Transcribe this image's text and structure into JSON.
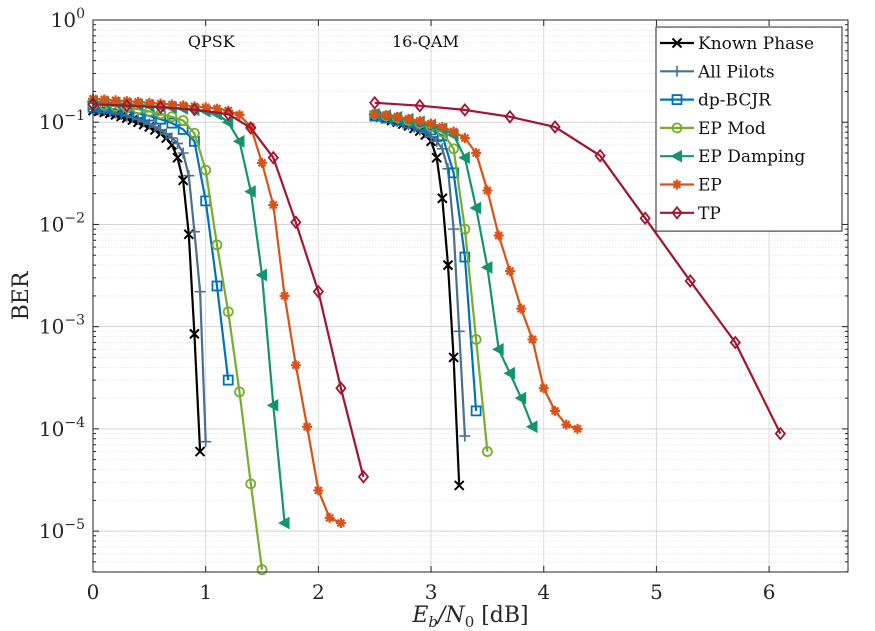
{
  "chart_data": {
    "type": "line",
    "xlabel": "E_b/N_0 [dB]",
    "xlabel_parts": {
      "main": "E",
      "sub1": "b",
      "mid": "/N",
      "sub2": "0",
      "unit": " [dB]"
    },
    "ylabel": "BER",
    "xlim": [
      0,
      6.7
    ],
    "ylim_exp": [
      -5.4,
      0
    ],
    "y_scale": "log",
    "x_ticks": [
      "0",
      "1",
      "2",
      "3",
      "4",
      "5",
      "6"
    ],
    "y_ticks": [
      {
        "base": "10",
        "exp": "0"
      },
      {
        "base": "10",
        "exp": "−1"
      },
      {
        "base": "10",
        "exp": "−2"
      },
      {
        "base": "10",
        "exp": "−3"
      },
      {
        "base": "10",
        "exp": "−4"
      },
      {
        "base": "10",
        "exp": "−5"
      }
    ],
    "grid": true,
    "legend_position": "top-right",
    "annotations": [
      {
        "text": "QPSK",
        "x": 1.05,
        "y": 0.62
      },
      {
        "text": "16-QAM",
        "x": 2.95,
        "y": 0.62
      }
    ],
    "series": [
      {
        "name": "Known Phase",
        "color": "#000000",
        "marker": "x",
        "x": [
          0,
          0.05,
          0.1,
          0.15,
          0.2,
          0.25,
          0.3,
          0.35,
          0.4,
          0.45,
          0.5,
          0.55,
          0.6,
          0.65,
          0.7,
          0.75,
          0.8,
          0.85,
          0.9,
          0.95
        ],
        "y": [
          0.13,
          0.128,
          0.125,
          0.122,
          0.118,
          0.114,
          0.11,
          0.105,
          0.1,
          0.095,
          0.09,
          0.084,
          0.077,
          0.07,
          0.06,
          0.045,
          0.027,
          0.008,
          0.00085,
          6e-05
        ]
      },
      {
        "name": "Known Phase",
        "color": "#000000",
        "marker": "x",
        "x": [
          2.5,
          2.55,
          2.6,
          2.65,
          2.7,
          2.75,
          2.8,
          2.85,
          2.9,
          2.95,
          3.0,
          3.05,
          3.1,
          3.15,
          3.2,
          3.25
        ],
        "y": [
          0.115,
          0.112,
          0.108,
          0.104,
          0.1,
          0.096,
          0.092,
          0.087,
          0.082,
          0.075,
          0.065,
          0.045,
          0.018,
          0.004,
          0.0005,
          2.8e-05
        ]
      },
      {
        "name": "All Pilots",
        "color": "#4a6f8f",
        "marker": "+",
        "x": [
          0,
          0.05,
          0.1,
          0.15,
          0.2,
          0.25,
          0.3,
          0.35,
          0.4,
          0.45,
          0.5,
          0.55,
          0.6,
          0.65,
          0.7,
          0.75,
          0.8,
          0.85,
          0.9,
          0.95,
          1.0
        ],
        "y": [
          0.135,
          0.132,
          0.13,
          0.127,
          0.123,
          0.119,
          0.115,
          0.111,
          0.106,
          0.101,
          0.096,
          0.09,
          0.084,
          0.077,
          0.07,
          0.062,
          0.05,
          0.03,
          0.0085,
          0.0022,
          7.5e-05
        ]
      },
      {
        "name": "All Pilots",
        "color": "#4a6f8f",
        "marker": "+",
        "x": [
          2.5,
          2.55,
          2.6,
          2.65,
          2.7,
          2.75,
          2.8,
          2.85,
          2.9,
          2.95,
          3.0,
          3.05,
          3.1,
          3.15,
          3.2,
          3.25,
          3.3
        ],
        "y": [
          0.117,
          0.114,
          0.11,
          0.106,
          0.102,
          0.098,
          0.094,
          0.089,
          0.084,
          0.079,
          0.072,
          0.065,
          0.055,
          0.035,
          0.009,
          0.0009,
          8.5e-05
        ]
      },
      {
        "name": "dp-BCJR",
        "color": "#0072bd",
        "marker": "square",
        "x": [
          0,
          0.1,
          0.2,
          0.3,
          0.4,
          0.5,
          0.6,
          0.7,
          0.8,
          0.9,
          1.0,
          1.1,
          1.2
        ],
        "y": [
          0.14,
          0.137,
          0.133,
          0.128,
          0.122,
          0.115,
          0.107,
          0.098,
          0.085,
          0.065,
          0.017,
          0.0025,
          0.0003
        ]
      },
      {
        "name": "dp-BCJR",
        "color": "#0072bd",
        "marker": "square",
        "x": [
          2.5,
          2.6,
          2.7,
          2.8,
          2.9,
          3.0,
          3.1,
          3.2,
          3.3,
          3.4
        ],
        "y": [
          0.115,
          0.11,
          0.104,
          0.098,
          0.092,
          0.084,
          0.074,
          0.032,
          0.0048,
          0.00015
        ]
      },
      {
        "name": "EP Mod",
        "color": "#77ac30",
        "marker": "circle",
        "x": [
          0,
          0.1,
          0.2,
          0.3,
          0.4,
          0.5,
          0.6,
          0.7,
          0.8,
          0.9,
          1.0,
          1.1,
          1.2,
          1.3,
          1.4,
          1.5
        ],
        "y": [
          0.15,
          0.147,
          0.143,
          0.139,
          0.134,
          0.128,
          0.121,
          0.113,
          0.104,
          0.078,
          0.034,
          0.0063,
          0.0014,
          0.00023,
          2.9e-05,
          4.2e-06
        ]
      },
      {
        "name": "EP Mod",
        "color": "#77ac30",
        "marker": "circle",
        "x": [
          2.5,
          2.6,
          2.7,
          2.8,
          2.9,
          3.0,
          3.1,
          3.2,
          3.3,
          3.4,
          3.5
        ],
        "y": [
          0.12,
          0.115,
          0.11,
          0.104,
          0.097,
          0.09,
          0.08,
          0.055,
          0.009,
          0.00075,
          6e-05
        ]
      },
      {
        "name": "EP Damping",
        "color": "#14946e",
        "marker": "triangle-left",
        "x": [
          0,
          0.1,
          0.2,
          0.3,
          0.4,
          0.5,
          0.6,
          0.7,
          0.8,
          0.9,
          1.0,
          1.1,
          1.2,
          1.3,
          1.4,
          1.5,
          1.6,
          1.7
        ],
        "y": [
          0.16,
          0.157,
          0.154,
          0.151,
          0.148,
          0.145,
          0.142,
          0.139,
          0.136,
          0.132,
          0.128,
          0.12,
          0.1,
          0.065,
          0.021,
          0.0032,
          0.00017,
          1.2e-05
        ]
      },
      {
        "name": "EP Damping",
        "color": "#14946e",
        "marker": "triangle-left",
        "x": [
          2.5,
          2.6,
          2.7,
          2.8,
          2.9,
          3.0,
          3.1,
          3.2,
          3.3,
          3.4,
          3.5,
          3.6,
          3.7,
          3.8,
          3.9
        ],
        "y": [
          0.12,
          0.116,
          0.112,
          0.107,
          0.101,
          0.094,
          0.086,
          0.075,
          0.045,
          0.0145,
          0.0038,
          0.0006,
          0.00035,
          0.0002,
          0.000105
        ]
      },
      {
        "name": "EP",
        "color": "#d95319",
        "marker": "asterisk",
        "x": [
          0,
          0.1,
          0.2,
          0.3,
          0.4,
          0.5,
          0.6,
          0.7,
          0.8,
          0.9,
          1.0,
          1.1,
          1.2,
          1.3,
          1.4,
          1.5,
          1.6,
          1.7,
          1.8,
          1.9,
          2.0,
          2.1,
          2.2
        ],
        "y": [
          0.17,
          0.167,
          0.164,
          0.161,
          0.158,
          0.155,
          0.152,
          0.149,
          0.146,
          0.143,
          0.14,
          0.136,
          0.13,
          0.118,
          0.09,
          0.04,
          0.0155,
          0.002,
          0.00042,
          0.000105,
          2.5e-05,
          1.35e-05,
          1.2e-05
        ]
      },
      {
        "name": "EP",
        "color": "#d95319",
        "marker": "asterisk",
        "x": [
          2.5,
          2.6,
          2.7,
          2.8,
          2.9,
          3.0,
          3.1,
          3.2,
          3.3,
          3.4,
          3.5,
          3.6,
          3.7,
          3.8,
          3.9,
          4.0,
          4.1,
          4.2,
          4.3
        ],
        "y": [
          0.12,
          0.117,
          0.113,
          0.108,
          0.103,
          0.097,
          0.09,
          0.081,
          0.07,
          0.05,
          0.0215,
          0.0078,
          0.0035,
          0.0015,
          0.00075,
          0.00025,
          0.00015,
          0.00011,
          0.0001
        ]
      },
      {
        "name": "TP",
        "color": "#a2142f",
        "marker": "diamond",
        "x": [
          0,
          0.3,
          0.6,
          0.9,
          1.2,
          1.4,
          1.6,
          1.8,
          2.0,
          2.2,
          2.4
        ],
        "y": [
          0.15,
          0.145,
          0.14,
          0.133,
          0.12,
          0.088,
          0.045,
          0.0105,
          0.0022,
          0.00025,
          3.4e-05
        ]
      },
      {
        "name": "TP",
        "color": "#a2142f",
        "marker": "diamond",
        "x": [
          2.5,
          2.9,
          3.3,
          3.7,
          4.1,
          4.5,
          4.9,
          5.3,
          5.7,
          6.1
        ],
        "y": [
          0.155,
          0.145,
          0.132,
          0.113,
          0.09,
          0.047,
          0.0115,
          0.0028,
          0.0007,
          9e-05
        ]
      }
    ]
  },
  "legend": [
    {
      "name": "Known Phase",
      "color": "#000000",
      "marker": "x"
    },
    {
      "name": "All Pilots",
      "color": "#4a6f8f",
      "marker": "+"
    },
    {
      "name": "dp-BCJR",
      "color": "#0072bd",
      "marker": "square"
    },
    {
      "name": "EP Mod",
      "color": "#77ac30",
      "marker": "circle"
    },
    {
      "name": "EP Damping",
      "color": "#14946e",
      "marker": "triangle-left"
    },
    {
      "name": "EP",
      "color": "#d95319",
      "marker": "asterisk"
    },
    {
      "name": "TP",
      "color": "#a2142f",
      "marker": "diamond"
    }
  ]
}
